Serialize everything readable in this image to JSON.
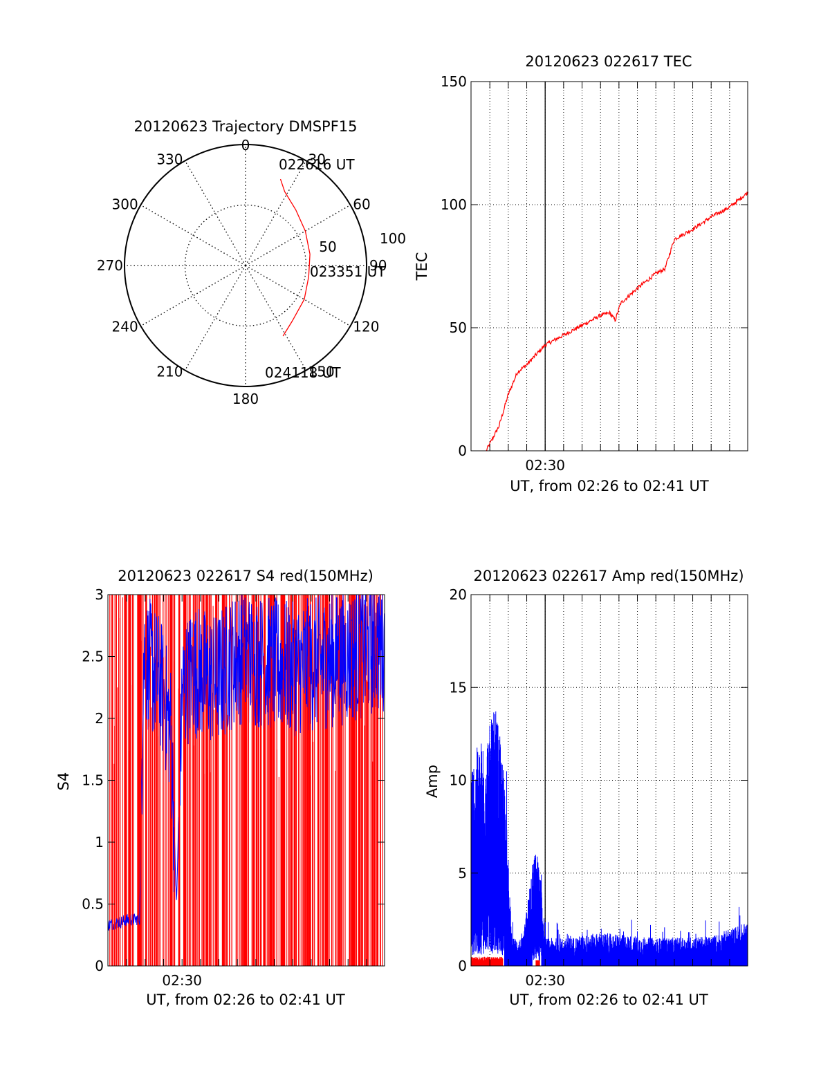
{
  "colors": {
    "red": "#ff0000",
    "blue": "#0000ff",
    "axis": "#000000"
  },
  "chart_data": [
    {
      "id": "trajectory",
      "type": "polar",
      "title": "20120623 Trajectory DMSPF15",
      "angle_ticks": [
        "0",
        "30",
        "60",
        "90",
        "120",
        "150",
        "180",
        "210",
        "240",
        "270",
        "300",
        "330"
      ],
      "radius_labels": [
        "50",
        "100"
      ],
      "r_max": 100,
      "track": {
        "color": "#ff0000",
        "points": [
          [
            22,
            77
          ],
          [
            28,
            69
          ],
          [
            42,
            62
          ],
          [
            60,
            57
          ],
          [
            80,
            54
          ],
          [
            100,
            53
          ],
          [
            120,
            56
          ],
          [
            140,
            60
          ],
          [
            152,
            66
          ]
        ]
      },
      "annotations": [
        "022616 UT",
        "023351 UT",
        "024118 UT"
      ]
    },
    {
      "id": "tec",
      "type": "line",
      "title": "20120623 022617 TEC",
      "xlabel": "UT, from 02:26 to 02:41 UT",
      "ylabel": "TEC",
      "xlim": [
        2.433,
        2.683
      ],
      "ylim": [
        0,
        150
      ],
      "yticks": [
        "0",
        "50",
        "100",
        "150"
      ],
      "xtick_labels": [
        {
          "x": 2.5,
          "label": "02:30"
        }
      ],
      "grid": true,
      "series": [
        {
          "color": "#ff0000",
          "x": [
            2.4467,
            2.4583,
            2.4667,
            2.475,
            2.4833,
            2.5,
            2.5167,
            2.5333,
            2.55,
            2.5583,
            2.5633,
            2.5683,
            2.5833,
            2.6,
            2.6083,
            2.6167,
            2.6333,
            2.65,
            2.6667,
            2.6833
          ],
          "y": [
            0,
            10,
            23,
            32,
            35,
            43,
            47,
            51,
            55,
            56,
            53,
            60,
            66,
            72,
            74,
            86,
            90,
            95,
            99,
            105
          ]
        }
      ]
    },
    {
      "id": "s4",
      "type": "line",
      "title": "20120623 022617 S4 red(150MHz)",
      "xlabel": "UT, from 02:26 to 02:41 UT",
      "ylabel": "S4",
      "xlim": [
        2.433,
        2.683
      ],
      "ylim": [
        0,
        3
      ],
      "yticks": [
        "0",
        "0.5",
        "1",
        "1.5",
        "2",
        "2.5",
        "3"
      ],
      "xtick_labels": [
        {
          "x": 2.5,
          "label": "02:30"
        }
      ],
      "grid": false,
      "series": [
        {
          "color": "#ff0000",
          "note_shape": "dense spikes spanning 0 to 3 across the full interval",
          "x": [
            2.44,
            2.47,
            2.5,
            2.55,
            2.6,
            2.65,
            2.68
          ],
          "y": [
            3,
            3,
            3,
            3,
            3,
            3,
            3
          ]
        },
        {
          "color": "#0000ff",
          "x": [
            2.4333,
            2.45,
            2.4617,
            2.465,
            2.48,
            2.49,
            2.495,
            2.5,
            2.51,
            2.53,
            2.55,
            2.6,
            2.65,
            2.683
          ],
          "y": [
            0.33,
            0.37,
            0.38,
            2.5,
            2.3,
            1.9,
            0.5,
            2.2,
            2.4,
            2.3,
            2.5,
            2.4,
            2.5,
            2.6
          ]
        }
      ]
    },
    {
      "id": "amp",
      "type": "line",
      "title": "20120623 022617 Amp red(150MHz)",
      "xlabel": "UT, from 02:26 to 02:41 UT",
      "ylabel": "Amp",
      "xlim": [
        2.433,
        2.683
      ],
      "ylim": [
        0,
        20
      ],
      "yticks": [
        "0",
        "5",
        "10",
        "15",
        "20"
      ],
      "xtick_labels": [
        {
          "x": 2.5,
          "label": "02:30"
        }
      ],
      "grid": true,
      "series": [
        {
          "color": "#0000ff",
          "x": [
            2.4333,
            2.44,
            2.45,
            2.455,
            2.46,
            2.4633,
            2.47,
            2.48,
            2.4883,
            2.4917,
            2.4967,
            2.5,
            2.52,
            2.55,
            2.6,
            2.65,
            2.6833
          ],
          "y": [
            11,
            12,
            13,
            14,
            12,
            10,
            1.5,
            1.5,
            5.5,
            6.3,
            5,
            1.5,
            1.5,
            1.8,
            1.5,
            1.6,
            2.4
          ]
        },
        {
          "color": "#ff0000",
          "x": [
            2.4333,
            2.45,
            2.4617,
            2.495
          ],
          "y": [
            0.2,
            0.2,
            0.2,
            0.2
          ]
        }
      ]
    }
  ]
}
